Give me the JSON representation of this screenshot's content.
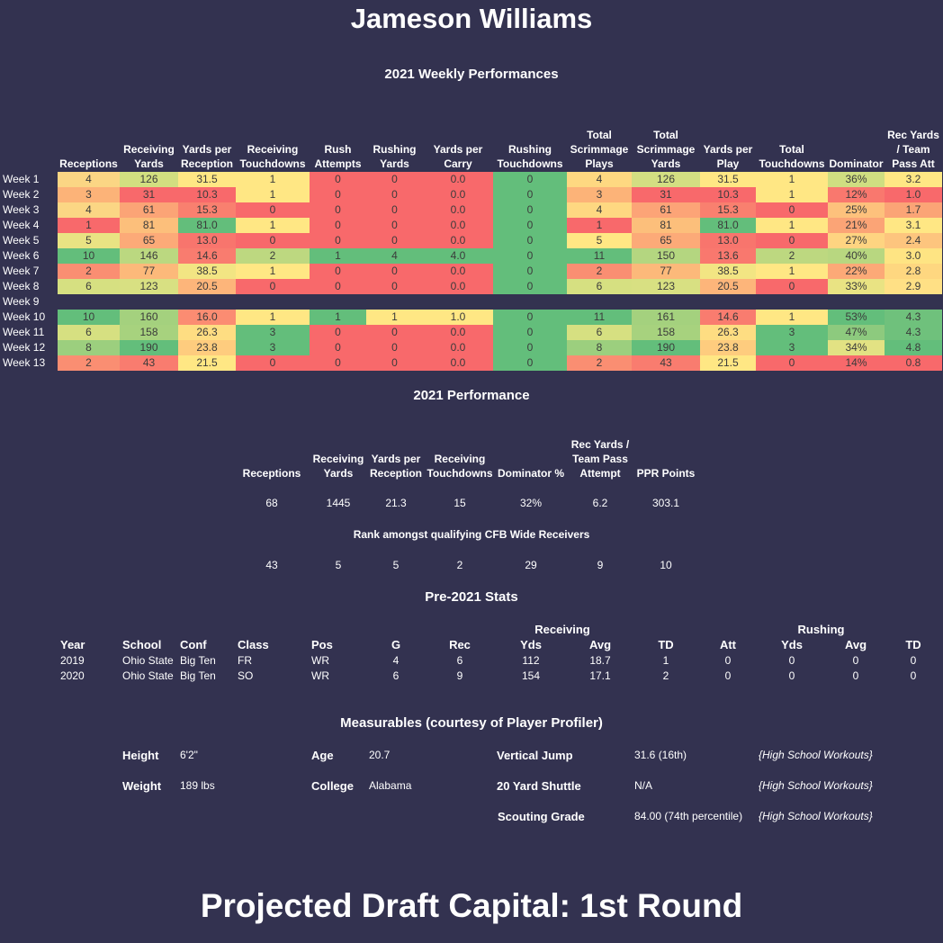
{
  "title": "Jameson Williams",
  "weekly": {
    "title": "2021 Weekly Performances",
    "columns": [
      [
        "Receptions"
      ],
      [
        "Receiving",
        "Yards"
      ],
      [
        "Yards per",
        "Reception"
      ],
      [
        "Receiving",
        "Touchdowns"
      ],
      [
        "Rush",
        "Attempts"
      ],
      [
        "Rushing",
        "Yards"
      ],
      [
        "Yards per",
        "Carry"
      ],
      [
        "Rushing",
        "Touchdowns"
      ],
      [
        "Total",
        "Scrimmage",
        "Plays"
      ],
      [
        "Total",
        "Scrimmage",
        "Yards"
      ],
      [
        "Yards per",
        "Play"
      ],
      [
        "Total",
        "Touchdowns"
      ],
      [
        "Dominator"
      ],
      [
        "Rec Yards",
        "/ Team",
        "Pass Att"
      ]
    ],
    "rows": [
      {
        "label": "Week 1",
        "values": [
          "4",
          "126",
          "31.5",
          "1",
          "0",
          "0",
          "0.0",
          "0",
          "4",
          "126",
          "31.5",
          "1",
          "36%",
          "3.2"
        ],
        "colors": [
          "#fbd684",
          "#d2df80",
          "#ffe784",
          "#ffe784",
          "#f8696b",
          "#f8696b",
          "#f8696b",
          "#63be7b",
          "#fed881",
          "#d3df82",
          "#ffe784",
          "#ffe784",
          "#cfde81",
          "#ffe784"
        ]
      },
      {
        "label": "Week 2",
        "values": [
          "3",
          "31",
          "10.3",
          "1",
          "0",
          "0",
          "0.0",
          "0",
          "3",
          "31",
          "10.3",
          "1",
          "12%",
          "1.0"
        ],
        "colors": [
          "#fcb378",
          "#f8696b",
          "#f8696b",
          "#ffe784",
          "#f8696b",
          "#f8696b",
          "#f8696b",
          "#63be7b",
          "#fcb378",
          "#f8696b",
          "#f8696b",
          "#ffe784",
          "#f9786e",
          "#f8696b"
        ]
      },
      {
        "label": "Week 3",
        "values": [
          "4",
          "61",
          "15.3",
          "0",
          "0",
          "0",
          "0.0",
          "0",
          "4",
          "61",
          "15.3",
          "0",
          "25%",
          "1.7"
        ],
        "colors": [
          "#fbd684",
          "#fba476",
          "#f9806f",
          "#f8696b",
          "#f8696b",
          "#f8696b",
          "#f8696b",
          "#63be7b",
          "#fed881",
          "#fca477",
          "#f9806f",
          "#f8696b",
          "#fdc17c",
          "#fba476"
        ]
      },
      {
        "label": "Week 4",
        "values": [
          "1",
          "81",
          "81.0",
          "1",
          "0",
          "0",
          "0.0",
          "0",
          "1",
          "81",
          "81.0",
          "1",
          "21%",
          "3.1"
        ],
        "colors": [
          "#f8696b",
          "#fcbf7b",
          "#63be7b",
          "#ffe784",
          "#f8696b",
          "#f8696b",
          "#f8696b",
          "#63be7b",
          "#f8696b",
          "#fcbf7b",
          "#63be7b",
          "#ffe784",
          "#fba476",
          "#ffe784"
        ]
      },
      {
        "label": "Week 5",
        "values": [
          "5",
          "65",
          "13.0",
          "0",
          "0",
          "0",
          "0.0",
          "0",
          "5",
          "65",
          "13.0",
          "0",
          "27%",
          "2.4"
        ],
        "colors": [
          "#e9e383",
          "#fcaa78",
          "#f8756d",
          "#f8696b",
          "#f8696b",
          "#f8696b",
          "#f8696b",
          "#63be7b",
          "#ffe784",
          "#fcaa78",
          "#f8756d",
          "#f8696b",
          "#fed481",
          "#fdc57e"
        ]
      },
      {
        "label": "Week 6",
        "values": [
          "10",
          "146",
          "14.6",
          "2",
          "1",
          "4",
          "4.0",
          "0",
          "11",
          "150",
          "13.6",
          "2",
          "40%",
          "3.0"
        ],
        "colors": [
          "#63be7b",
          "#bbd880",
          "#f97c6f",
          "#bdd880",
          "#63be7b",
          "#63be7b",
          "#63be7b",
          "#63be7b",
          "#63be7b",
          "#b4d680",
          "#f9786e",
          "#bdd880",
          "#b8d780",
          "#fee483"
        ]
      },
      {
        "label": "Week 7",
        "values": [
          "2",
          "77",
          "38.5",
          "1",
          "0",
          "0",
          "0.0",
          "0",
          "2",
          "77",
          "38.5",
          "1",
          "22%",
          "2.8"
        ],
        "colors": [
          "#fa8e72",
          "#fcb97a",
          "#f2e583",
          "#ffe784",
          "#f8696b",
          "#f8696b",
          "#f8696b",
          "#63be7b",
          "#fa8e72",
          "#fcb97a",
          "#f2e583",
          "#ffe784",
          "#fca977",
          "#fed780"
        ]
      },
      {
        "label": "Week 8",
        "values": [
          "6",
          "123",
          "20.5",
          "0",
          "0",
          "0",
          "0.0",
          "0",
          "6",
          "123",
          "20.5",
          "0",
          "33%",
          "2.9"
        ],
        "colors": [
          "#d6e081",
          "#d8e082",
          "#fdb57a",
          "#f8696b",
          "#f8696b",
          "#f8696b",
          "#f8696b",
          "#63be7b",
          "#d6e081",
          "#d8e082",
          "#fdb57a",
          "#f8696b",
          "#e9e383",
          "#ffe085"
        ]
      },
      {
        "label": "Week 9",
        "values": [
          "",
          "",
          "",
          "",
          "",
          "",
          "",
          "",
          "",
          "",
          "",
          "",
          "",
          ""
        ],
        "colors": [
          "",
          "",
          "",
          "",
          "",
          "",
          "",
          "",
          "",
          "",
          "",
          "",
          "",
          ""
        ]
      },
      {
        "label": "Week 10",
        "values": [
          "10",
          "160",
          "16.0",
          "1",
          "1",
          "1",
          "1.0",
          "0",
          "11",
          "161",
          "14.6",
          "1",
          "53%",
          "4.3"
        ],
        "colors": [
          "#63be7b",
          "#a4d17e",
          "#fb8c72",
          "#ffe784",
          "#63be7b",
          "#ffe784",
          "#ffe784",
          "#63be7b",
          "#63be7b",
          "#a4d17e",
          "#f97c6f",
          "#ffe784",
          "#63be7b",
          "#6fc17c"
        ]
      },
      {
        "label": "Week 11",
        "values": [
          "6",
          "158",
          "26.3",
          "3",
          "0",
          "0",
          "0.0",
          "0",
          "6",
          "158",
          "26.3",
          "3",
          "47%",
          "4.3"
        ],
        "colors": [
          "#d6e081",
          "#a7d27e",
          "#fedd82",
          "#63be7b",
          "#f8696b",
          "#f8696b",
          "#f8696b",
          "#63be7b",
          "#d6e081",
          "#a7d27e",
          "#fedd82",
          "#63be7b",
          "#8dca7e",
          "#6fc17c"
        ]
      },
      {
        "label": "Week 12",
        "values": [
          "8",
          "190",
          "23.8",
          "3",
          "0",
          "0",
          "0.0",
          "0",
          "8",
          "190",
          "23.8",
          "3",
          "34%",
          "4.8"
        ],
        "colors": [
          "#9ccf7e",
          "#63be7b",
          "#fecc7e",
          "#63be7b",
          "#f8696b",
          "#f8696b",
          "#f8696b",
          "#63be7b",
          "#9ccf7e",
          "#63be7b",
          "#fecc7e",
          "#63be7b",
          "#e2e283",
          "#63be7b"
        ]
      },
      {
        "label": "Week 13",
        "values": [
          "2",
          "43",
          "21.5",
          "0",
          "0",
          "0",
          "0.0",
          "0",
          "2",
          "43",
          "21.5",
          "0",
          "14%",
          "0.8"
        ],
        "colors": [
          "#fa8e72",
          "#f97c6f",
          "#ffe784",
          "#f8696b",
          "#f8696b",
          "#f8696b",
          "#f8696b",
          "#63be7b",
          "#fa8e72",
          "#f97c6f",
          "#ffe784",
          "#f8696b",
          "#f8696b",
          "#f8696b"
        ]
      }
    ]
  },
  "performance": {
    "title": "2021 Performance",
    "columns": [
      [
        "Receptions"
      ],
      [
        "Receiving",
        "Yards"
      ],
      [
        "Yards per",
        "Reception"
      ],
      [
        "Receiving",
        "Touchdowns"
      ],
      [
        "Dominator %"
      ],
      [
        "Rec Yards /",
        "Team Pass",
        "Attempt"
      ],
      [
        "PPR Points"
      ]
    ],
    "values": [
      "68",
      "1445",
      "21.3",
      "15",
      "32%",
      "6.2",
      "303.1"
    ],
    "rank_title": "Rank amongst qualifying CFB Wide Receivers",
    "ranks": [
      "43",
      "5",
      "5",
      "2",
      "29",
      "9",
      "10"
    ]
  },
  "pre2021": {
    "title": "Pre-2021 Stats",
    "group_receiving": "Receiving",
    "group_rushing": "Rushing",
    "headers": [
      "Year",
      "School",
      "Conf",
      "Class",
      "Pos",
      "G",
      "Rec",
      "Yds",
      "Avg",
      "TD",
      "Att",
      "Yds",
      "Avg",
      "TD"
    ],
    "rows": [
      [
        "2019",
        "Ohio State",
        "Big Ten",
        "FR",
        "WR",
        "4",
        "6",
        "112",
        "18.7",
        "1",
        "0",
        "0",
        "0",
        "0"
      ],
      [
        "2020",
        "Ohio State",
        "Big Ten",
        "SO",
        "WR",
        "6",
        "9",
        "154",
        "17.1",
        "2",
        "0",
        "0",
        "0",
        "0"
      ]
    ]
  },
  "measurables": {
    "title": "Measurables (courtesy of Player Profiler)",
    "height_label": "Height",
    "height": "6'2\"",
    "weight_label": "Weight",
    "weight": "189 lbs",
    "age_label": "Age",
    "age": "20.7",
    "college_label": "College",
    "college": "Alabama",
    "vertical_label": "Vertical Jump",
    "vertical": "31.6 (16th)",
    "vertical_note": "{High School Workouts}",
    "shuttle_label": "20 Yard Shuttle",
    "shuttle": "N/A",
    "shuttle_note": "{High School Workouts}",
    "grade_label": "Scouting Grade",
    "grade": "84.00 (74th percentile)",
    "grade_note": "{High School Workouts}"
  },
  "projection": "Projected Draft Capital:  1st Round"
}
